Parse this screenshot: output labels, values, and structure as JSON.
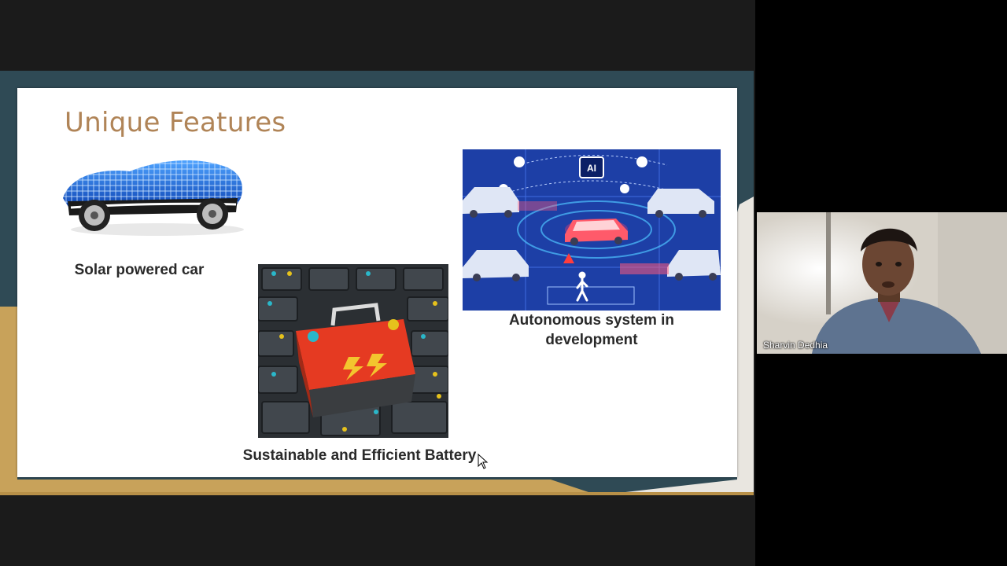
{
  "slide": {
    "title": "Unique Features",
    "features": [
      {
        "caption": "Solar powered car",
        "image": "solar-car"
      },
      {
        "caption": "Sustainable and Efficient Battery",
        "image": "battery-grid"
      },
      {
        "caption": "Autonomous system in development",
        "image": "autonomous-traffic-network"
      }
    ],
    "ai_chip_label": "AI"
  },
  "participant": {
    "name": "Sharvin Dedhia"
  },
  "colors": {
    "title": "#b08457",
    "frame_teal": "#2f4a55",
    "frame_gold": "#c8a25a",
    "autonomous_bg": "#1d3fa6"
  }
}
